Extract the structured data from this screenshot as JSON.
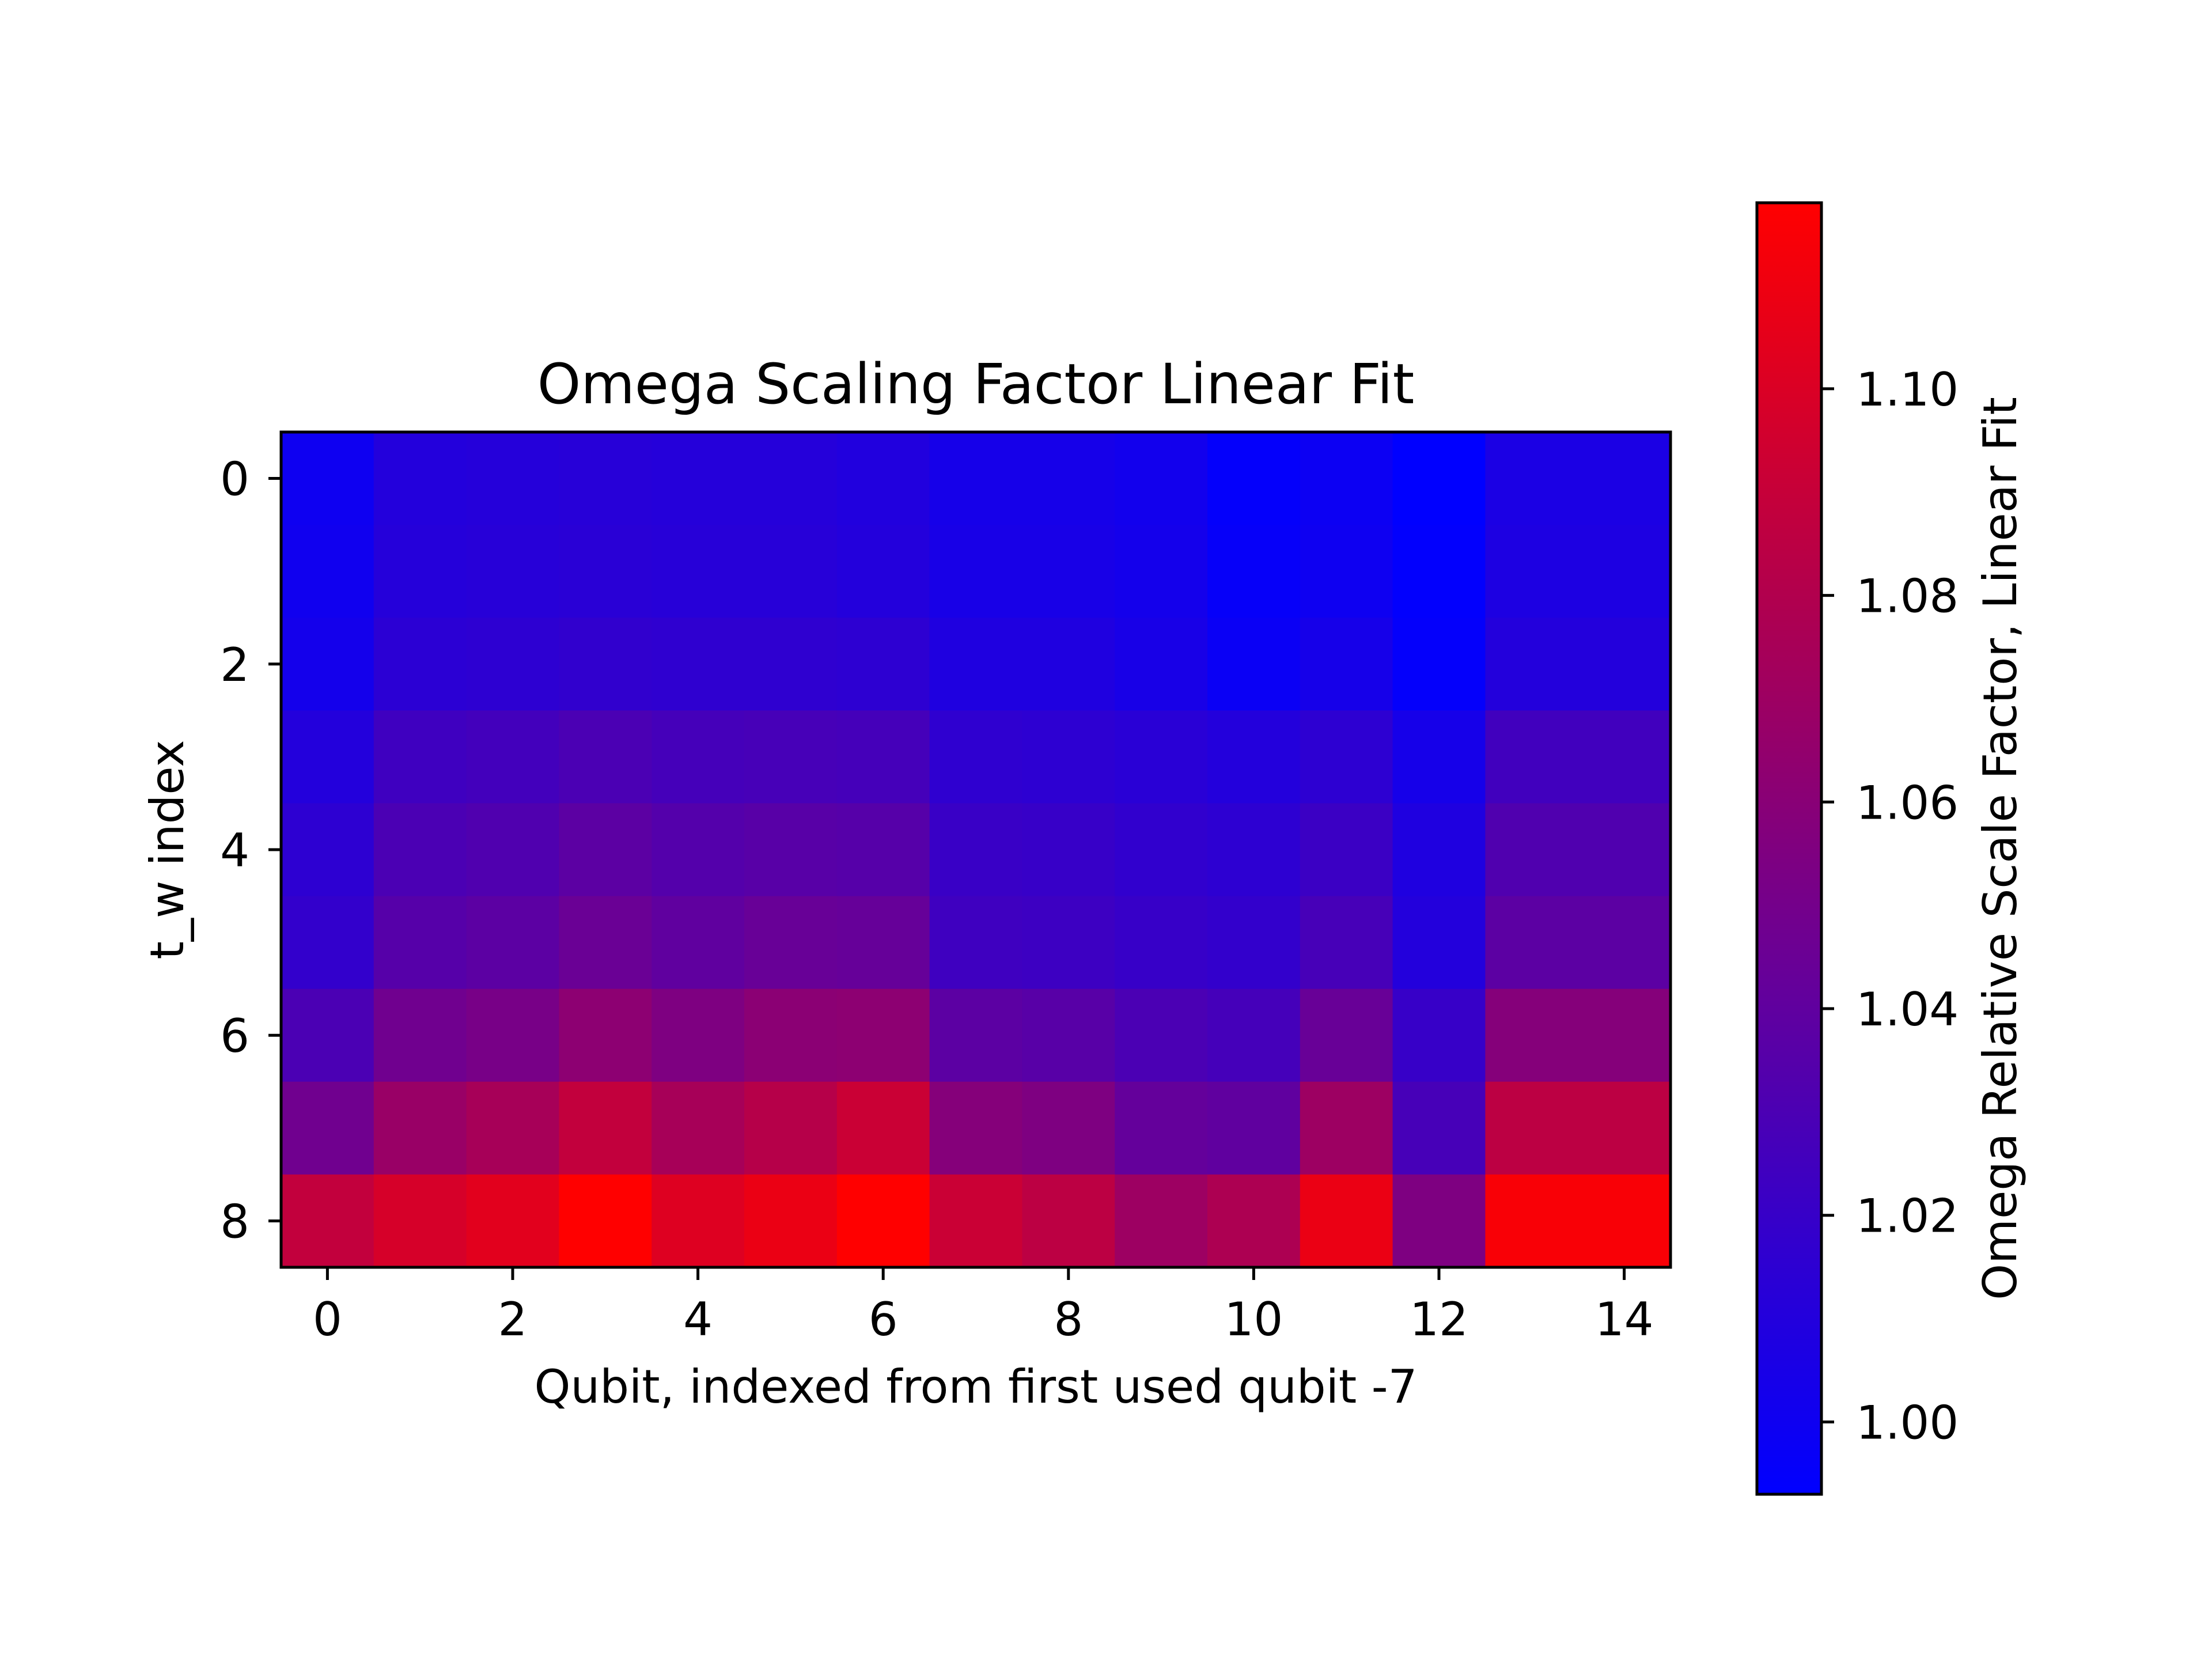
{
  "chart_data": {
    "type": "heatmap",
    "title": "Omega Scaling Factor Linear Fit",
    "xlabel": "Qubit, indexed from first used qubit -7",
    "ylabel": "t_w index",
    "x_ticks": [
      "0",
      "2",
      "4",
      "6",
      "8",
      "10",
      "12",
      "14"
    ],
    "y_ticks": [
      "0",
      "2",
      "4",
      "6",
      "8"
    ],
    "x": [
      0,
      1,
      2,
      3,
      4,
      5,
      6,
      7,
      8,
      9,
      10,
      11,
      12,
      13,
      14
    ],
    "y": [
      0,
      1,
      2,
      3,
      4,
      5,
      6,
      7,
      8
    ],
    "xlim": [
      -0.5,
      14.5
    ],
    "ylim": [
      8.5,
      -0.5
    ],
    "colorbar": {
      "label": "Omega Relative Scale Factor, Linear Fit",
      "min": 0.993,
      "max": 1.118,
      "ticks": [
        "1.00",
        "1.02",
        "1.04",
        "1.06",
        "1.08",
        "1.10"
      ],
      "tick_values": [
        1.0,
        1.02,
        1.04,
        1.06,
        1.08,
        1.1
      ],
      "color_low": "#0000ff",
      "color_high": "#ff0000"
    },
    "values": [
      [
        1.0,
        1.01,
        1.011,
        1.012,
        1.011,
        1.011,
        1.009,
        1.004,
        1.004,
        1.002,
        0.995,
        0.999,
        0.993,
        1.006,
        1.006
      ],
      [
        1.001,
        1.011,
        1.012,
        1.013,
        1.012,
        1.012,
        1.01,
        1.005,
        1.005,
        1.003,
        0.996,
        1.0,
        0.994,
        1.007,
        1.007
      ],
      [
        1.003,
        1.014,
        1.015,
        1.017,
        1.016,
        1.016,
        1.015,
        1.008,
        1.008,
        1.005,
        0.998,
        1.004,
        0.995,
        1.01,
        1.01
      ],
      [
        1.01,
        1.024,
        1.026,
        1.03,
        1.027,
        1.028,
        1.027,
        1.016,
        1.015,
        1.013,
        1.01,
        1.015,
        1.004,
        1.025,
        1.025
      ],
      [
        1.015,
        1.03,
        1.032,
        1.038,
        1.034,
        1.036,
        1.035,
        1.021,
        1.02,
        1.017,
        1.015,
        1.022,
        1.008,
        1.032,
        1.032
      ],
      [
        1.018,
        1.035,
        1.038,
        1.045,
        1.04,
        1.044,
        1.043,
        1.024,
        1.023,
        1.02,
        1.018,
        1.028,
        1.01,
        1.038,
        1.038
      ],
      [
        1.03,
        1.048,
        1.052,
        1.062,
        1.055,
        1.061,
        1.062,
        1.038,
        1.036,
        1.03,
        1.027,
        1.044,
        1.02,
        1.058,
        1.058
      ],
      [
        1.048,
        1.068,
        1.075,
        1.088,
        1.075,
        1.082,
        1.092,
        1.058,
        1.055,
        1.042,
        1.04,
        1.07,
        1.028,
        1.085,
        1.085
      ],
      [
        1.088,
        1.098,
        1.104,
        1.118,
        1.102,
        1.108,
        1.118,
        1.092,
        1.085,
        1.07,
        1.078,
        1.108,
        1.055,
        1.115,
        1.115
      ]
    ]
  }
}
